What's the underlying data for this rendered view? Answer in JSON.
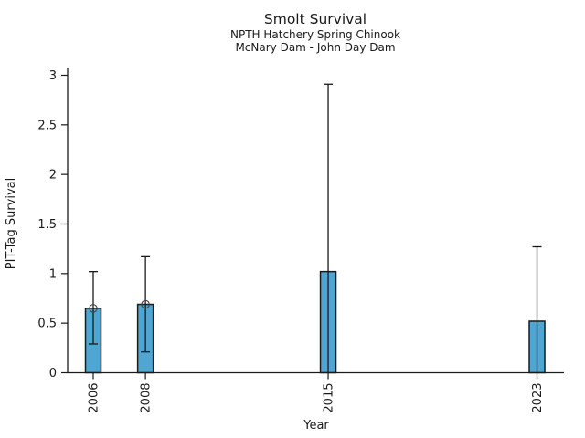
{
  "chart_data": {
    "type": "bar",
    "title": "Smolt Survival",
    "subtitle_lines": [
      "NPTH Hatchery Spring Chinook",
      "McNary Dam - John Day Dam"
    ],
    "xlabel": "Year",
    "ylabel": "PIT-Tag Survival",
    "categories": [
      "2006",
      "2008",
      "2015",
      "2023"
    ],
    "series": [
      {
        "name": "PIT-Tag Survival",
        "values": [
          0.65,
          0.69,
          1.02,
          0.52
        ],
        "error_low": [
          0.29,
          0.21,
          0.0,
          0.0
        ],
        "error_high": [
          1.02,
          1.17,
          2.91,
          1.27
        ],
        "point_markers": [
          true,
          true,
          false,
          false
        ]
      }
    ],
    "ylim": [
      0,
      3
    ],
    "yticks": [
      0,
      0.5,
      1,
      1.5,
      2,
      2.5,
      3
    ],
    "grid": false,
    "legend": null,
    "colors": {
      "bar_fill": "#4fa6d3",
      "bar_edge": "#1a1a1a",
      "error_bar": "#1a1a1a",
      "marker_edge": "#474747",
      "axis": "#1a1a1a",
      "text": "#1a1a1a",
      "background": "#ffffff"
    }
  }
}
